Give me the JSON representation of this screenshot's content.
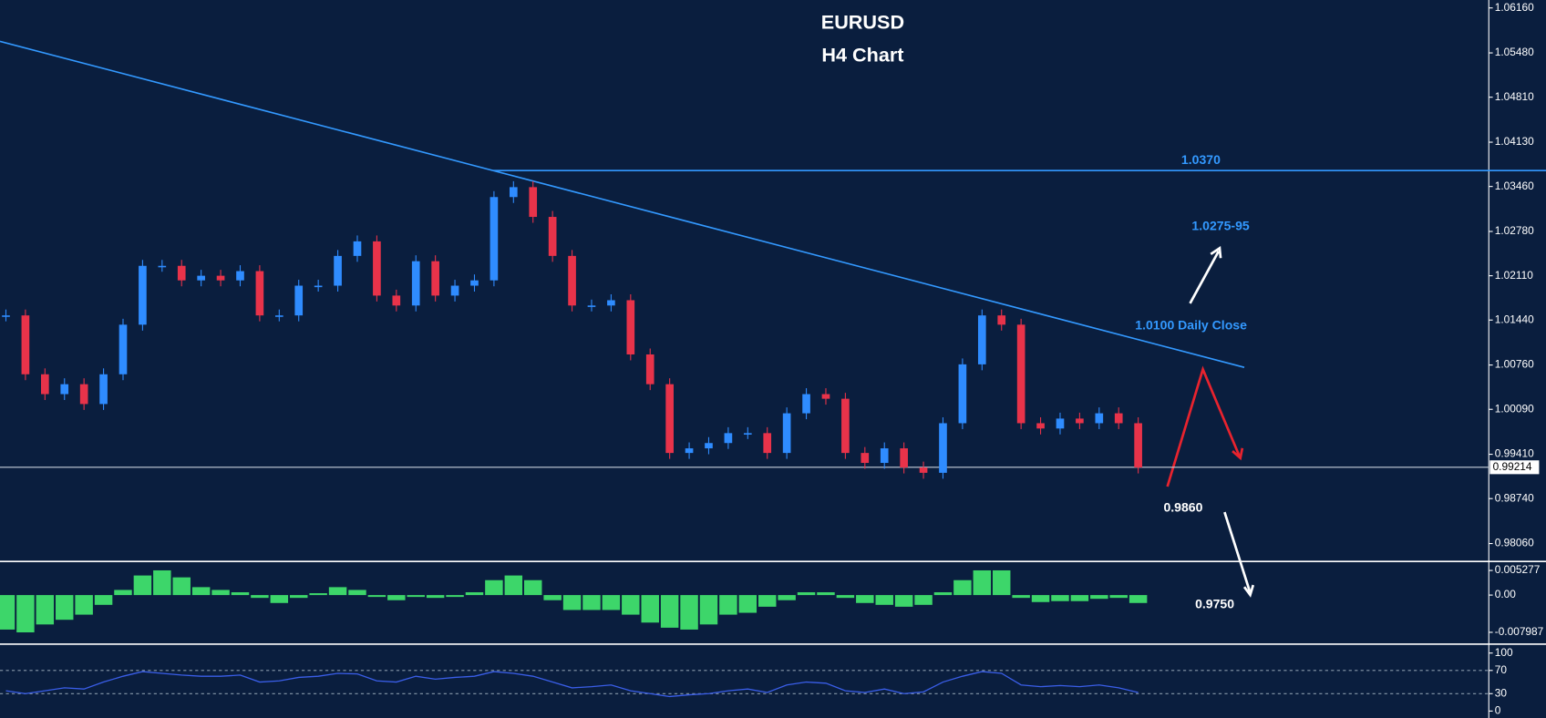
{
  "chart_data": [
    {
      "type": "candlestick",
      "title": "EURUSD",
      "subtitle": "H4 Chart",
      "colors": {
        "up": "#2f8cff",
        "down": "#e8334a"
      },
      "values": [
        1.0151,
        1.0062,
        1.0032,
        1.0047,
        1.0017,
        1.0062,
        1.0137,
        1.0226,
        1.0226,
        1.0204,
        1.0211,
        1.0204,
        1.0218,
        1.0151,
        1.0151,
        1.0196,
        1.0196,
        1.0241,
        1.0263,
        1.0181,
        1.0166,
        1.0233,
        1.0181,
        1.0196,
        1.0204,
        1.033,
        1.0345,
        1.03,
        1.0241,
        1.0166,
        1.0166,
        1.0174,
        1.0092,
        1.0047,
        0.9943,
        0.995,
        0.9958,
        0.9973,
        0.9973,
        0.9943,
        1.0003,
        1.0032,
        1.0025,
        0.9943,
        0.9928,
        0.995,
        0.9921,
        0.9913,
        0.9988,
        1.0077,
        1.0151,
        1.0137,
        0.9988,
        0.998,
        0.9995,
        0.9988,
        1.0003,
        0.9988,
        0.9921
      ],
      "ylim": [
        0.9782,
        1.0628
      ],
      "yticks": [
        {
          "value": 1.0616,
          "label": "1.06160"
        },
        {
          "value": 1.0548,
          "label": "1.05480"
        },
        {
          "value": 1.0481,
          "label": "1.04810"
        },
        {
          "value": 1.0413,
          "label": "1.04130"
        },
        {
          "value": 1.0346,
          "label": "1.03460"
        },
        {
          "value": 1.0278,
          "label": "1.02780"
        },
        {
          "value": 1.0211,
          "label": "1.02110"
        },
        {
          "value": 1.0144,
          "label": "1.01440"
        },
        {
          "value": 1.0076,
          "label": "1.00760"
        },
        {
          "value": 1.0009,
          "label": "1.00090"
        },
        {
          "value": 0.9941,
          "label": "0.99410"
        },
        {
          "value": 0.9874,
          "label": "0.98740"
        },
        {
          "value": 0.9806,
          "label": "0.98060"
        }
      ],
      "current_price": 0.99214,
      "resistance": {
        "value": 1.037,
        "label": "1.0370"
      },
      "annotations": [
        "1.0275-95",
        "1.0100 Daily Close",
        "0.9860",
        "0.9750"
      ]
    },
    {
      "type": "histogram",
      "color": "#3dd66a",
      "values": [
        -0.0074,
        -0.008,
        -0.0063,
        -0.0053,
        -0.0042,
        -0.0021,
        0.0011,
        0.0042,
        0.0053,
        0.0038,
        0.0017,
        0.0011,
        0.0006,
        -0.0006,
        -0.0017,
        -0.0006,
        0.0004,
        0.0017,
        0.0011,
        -0.0004,
        -0.0011,
        -0.0004,
        -0.0006,
        -0.0004,
        0.0006,
        0.0032,
        0.0042,
        0.0032,
        -0.0011,
        -0.0032,
        -0.0032,
        -0.0032,
        -0.0042,
        -0.0059,
        -0.007,
        -0.0074,
        -0.0063,
        -0.0042,
        -0.0038,
        -0.0025,
        -0.0011,
        0.0006,
        0.0006,
        -0.0006,
        -0.0017,
        -0.0021,
        -0.0025,
        -0.0021,
        0.0006,
        0.0032,
        0.0053,
        0.0053,
        -0.0006,
        -0.0015,
        -0.0013,
        -0.0013,
        -0.0008,
        -0.0006,
        -0.0017
      ],
      "ylim": [
        -0.0101,
        0.0068
      ],
      "yticks": [
        0.005277,
        {
          "value": 0,
          "label": "0.00"
        },
        -0.007987
      ]
    },
    {
      "type": "line",
      "color": "#3a5ee8",
      "values": [
        35,
        30,
        35,
        40,
        38,
        50,
        60,
        68,
        65,
        62,
        60,
        60,
        62,
        50,
        52,
        58,
        60,
        65,
        64,
        52,
        50,
        60,
        55,
        58,
        60,
        68,
        65,
        60,
        50,
        40,
        42,
        45,
        35,
        30,
        25,
        28,
        30,
        35,
        38,
        32,
        45,
        50,
        48,
        35,
        32,
        38,
        30,
        33,
        50,
        60,
        68,
        65,
        45,
        42,
        44,
        42,
        45,
        40,
        32
      ],
      "ylim": [
        -12,
        112
      ],
      "yticks": [
        100,
        70,
        30,
        0
      ]
    }
  ]
}
